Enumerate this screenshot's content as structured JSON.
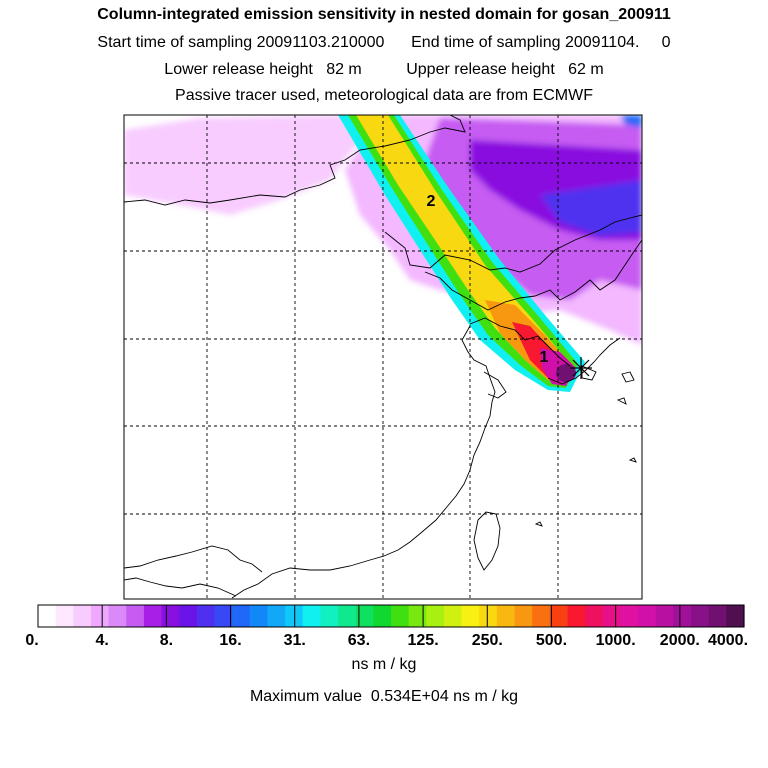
{
  "header": {
    "title": "Column-integrated emission sensitivity in nested domain for gosan_200911",
    "start_label": "Start time of sampling",
    "start_value": "20091103.210000",
    "end_label": "End time of sampling",
    "end_value": "20091104.",
    "end_suffix": "0",
    "lower_label": "Lower release height",
    "lower_value": "82 m",
    "upper_label": "Upper release height",
    "upper_value": "62 m",
    "tracer_line": "Passive tracer used, meteorological data are from ECMWF"
  },
  "map": {
    "label_1": "1",
    "label_2": "2",
    "release_marker_icon": "star-marker-icon"
  },
  "colorbar": {
    "ticks": [
      "0.",
      "4.",
      "8.",
      "16.",
      "31.",
      "63.",
      "125.",
      "250.",
      "500.",
      "1000.",
      "2000.",
      "4000."
    ],
    "colors": [
      "#ffffff",
      "#fde8ff",
      "#f8ccff",
      "#f0a8ff",
      "#d98af8",
      "#c65cf2",
      "#a820e8",
      "#8a10e0",
      "#6a14e8",
      "#5030f0",
      "#3848f4",
      "#2068f8",
      "#1288f8",
      "#12a8f8",
      "#10c8f8",
      "#10f0f0",
      "#10f0c0",
      "#10e890",
      "#10e060",
      "#10d830",
      "#40e010",
      "#78e810",
      "#a8f010",
      "#d0f010",
      "#f8f010",
      "#f8d810",
      "#f8b810",
      "#f89810",
      "#f87010",
      "#f84010",
      "#f81830",
      "#f01060",
      "#e81088",
      "#e010a0",
      "#d010a8",
      "#b810a0",
      "#a01098",
      "#881088",
      "#701070",
      "#501050"
    ],
    "units": "ns m / kg",
    "max_label": "Maximum value",
    "max_value": "0.534E+04 ns m / kg"
  }
}
